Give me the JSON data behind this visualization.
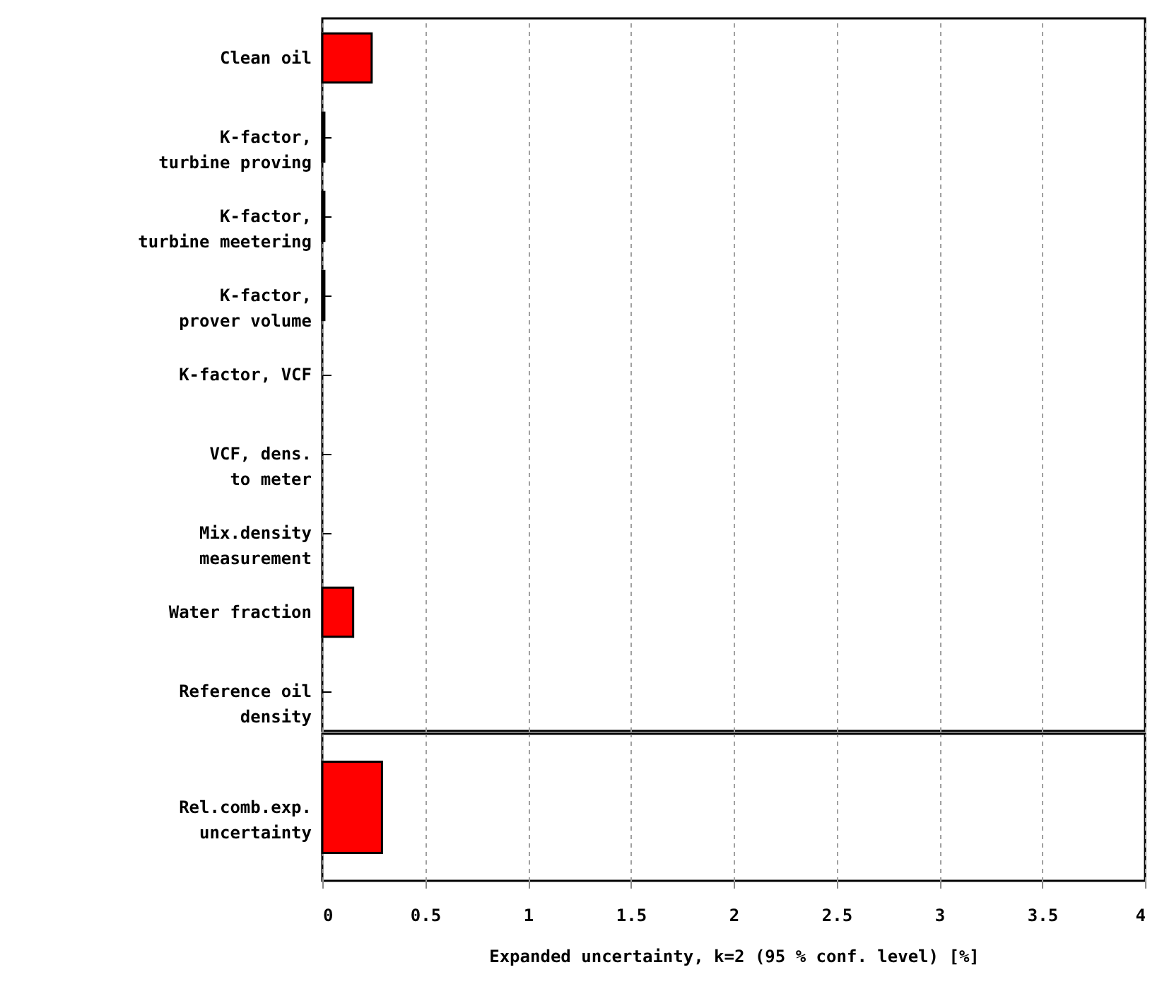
{
  "chart_data": [
    {
      "type": "bar",
      "orientation": "horizontal",
      "categories": [
        "Clean oil",
        "K-factor,\nturbine proving",
        "K-factor,\nturbine meetering",
        "K-factor,\nprover volume",
        "K-factor, VCF",
        "VCF, dens.\nto meter",
        "Mix.density\nmeasurement",
        "Water fraction",
        "Reference oil\ndensity"
      ],
      "values": [
        0.24,
        0.01,
        0.01,
        0.01,
        0,
        0,
        0,
        0.15,
        0
      ],
      "color": "#ff0000",
      "xlim": [
        0,
        4
      ],
      "xticks": [
        0,
        0.5,
        1,
        1.5,
        2,
        2.5,
        3,
        3.5,
        4
      ],
      "grid": "x",
      "tick_labels": "y"
    },
    {
      "type": "bar",
      "orientation": "horizontal",
      "categories": [
        "Rel.comb.exp.\nuncertainty"
      ],
      "values": [
        0.29
      ],
      "color": "#ff0000",
      "xlim": [
        0,
        4
      ],
      "xticks": [
        0,
        0.5,
        1,
        1.5,
        2,
        2.5,
        3,
        3.5,
        4
      ],
      "grid": "x",
      "xlabel": "Expanded uncertainty, k=2 (95 % conf. level) [%]"
    }
  ]
}
